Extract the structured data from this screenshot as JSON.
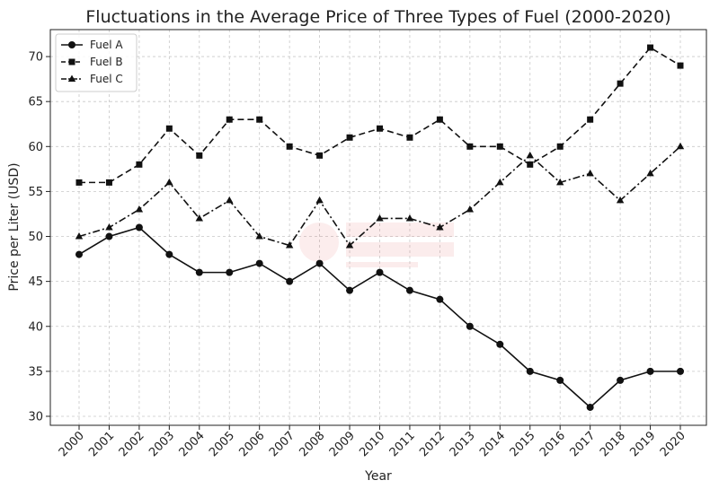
{
  "chart_data": {
    "type": "line",
    "title": "Fluctuations in the Average Price of Three Types of Fuel (2000-2020)",
    "xlabel": "Year",
    "ylabel": "Price per Liter (USD)",
    "x": [
      "2000",
      "2001",
      "2002",
      "2003",
      "2004",
      "2005",
      "2006",
      "2007",
      "2008",
      "2009",
      "2010",
      "2011",
      "2012",
      "2013",
      "2014",
      "2015",
      "2016",
      "2017",
      "2018",
      "2019",
      "2020"
    ],
    "ylim": [
      29,
      73
    ],
    "yticks": [
      30,
      35,
      40,
      45,
      50,
      55,
      60,
      65,
      70
    ],
    "grid": true,
    "legend_position": "top-left",
    "series": [
      {
        "name": "Fuel A",
        "marker": "circle",
        "line_style": "solid",
        "color": "#111111",
        "values": [
          48,
          50,
          51,
          48,
          46,
          46,
          47,
          45,
          47,
          44,
          46,
          44,
          43,
          40,
          38,
          35,
          34,
          31,
          34,
          35,
          35
        ]
      },
      {
        "name": "Fuel B",
        "marker": "square",
        "line_style": "dashed",
        "color": "#111111",
        "values": [
          56,
          56,
          58,
          62,
          59,
          63,
          63,
          60,
          59,
          61,
          62,
          61,
          63,
          60,
          60,
          58,
          60,
          63,
          67,
          71,
          69
        ]
      },
      {
        "name": "Fuel C",
        "marker": "triangle",
        "line_style": "dashdot",
        "color": "#111111",
        "values": [
          50,
          51,
          53,
          56,
          52,
          54,
          50,
          49,
          54,
          49,
          52,
          52,
          51,
          53,
          56,
          59,
          56,
          57,
          54,
          57,
          60
        ]
      }
    ]
  }
}
